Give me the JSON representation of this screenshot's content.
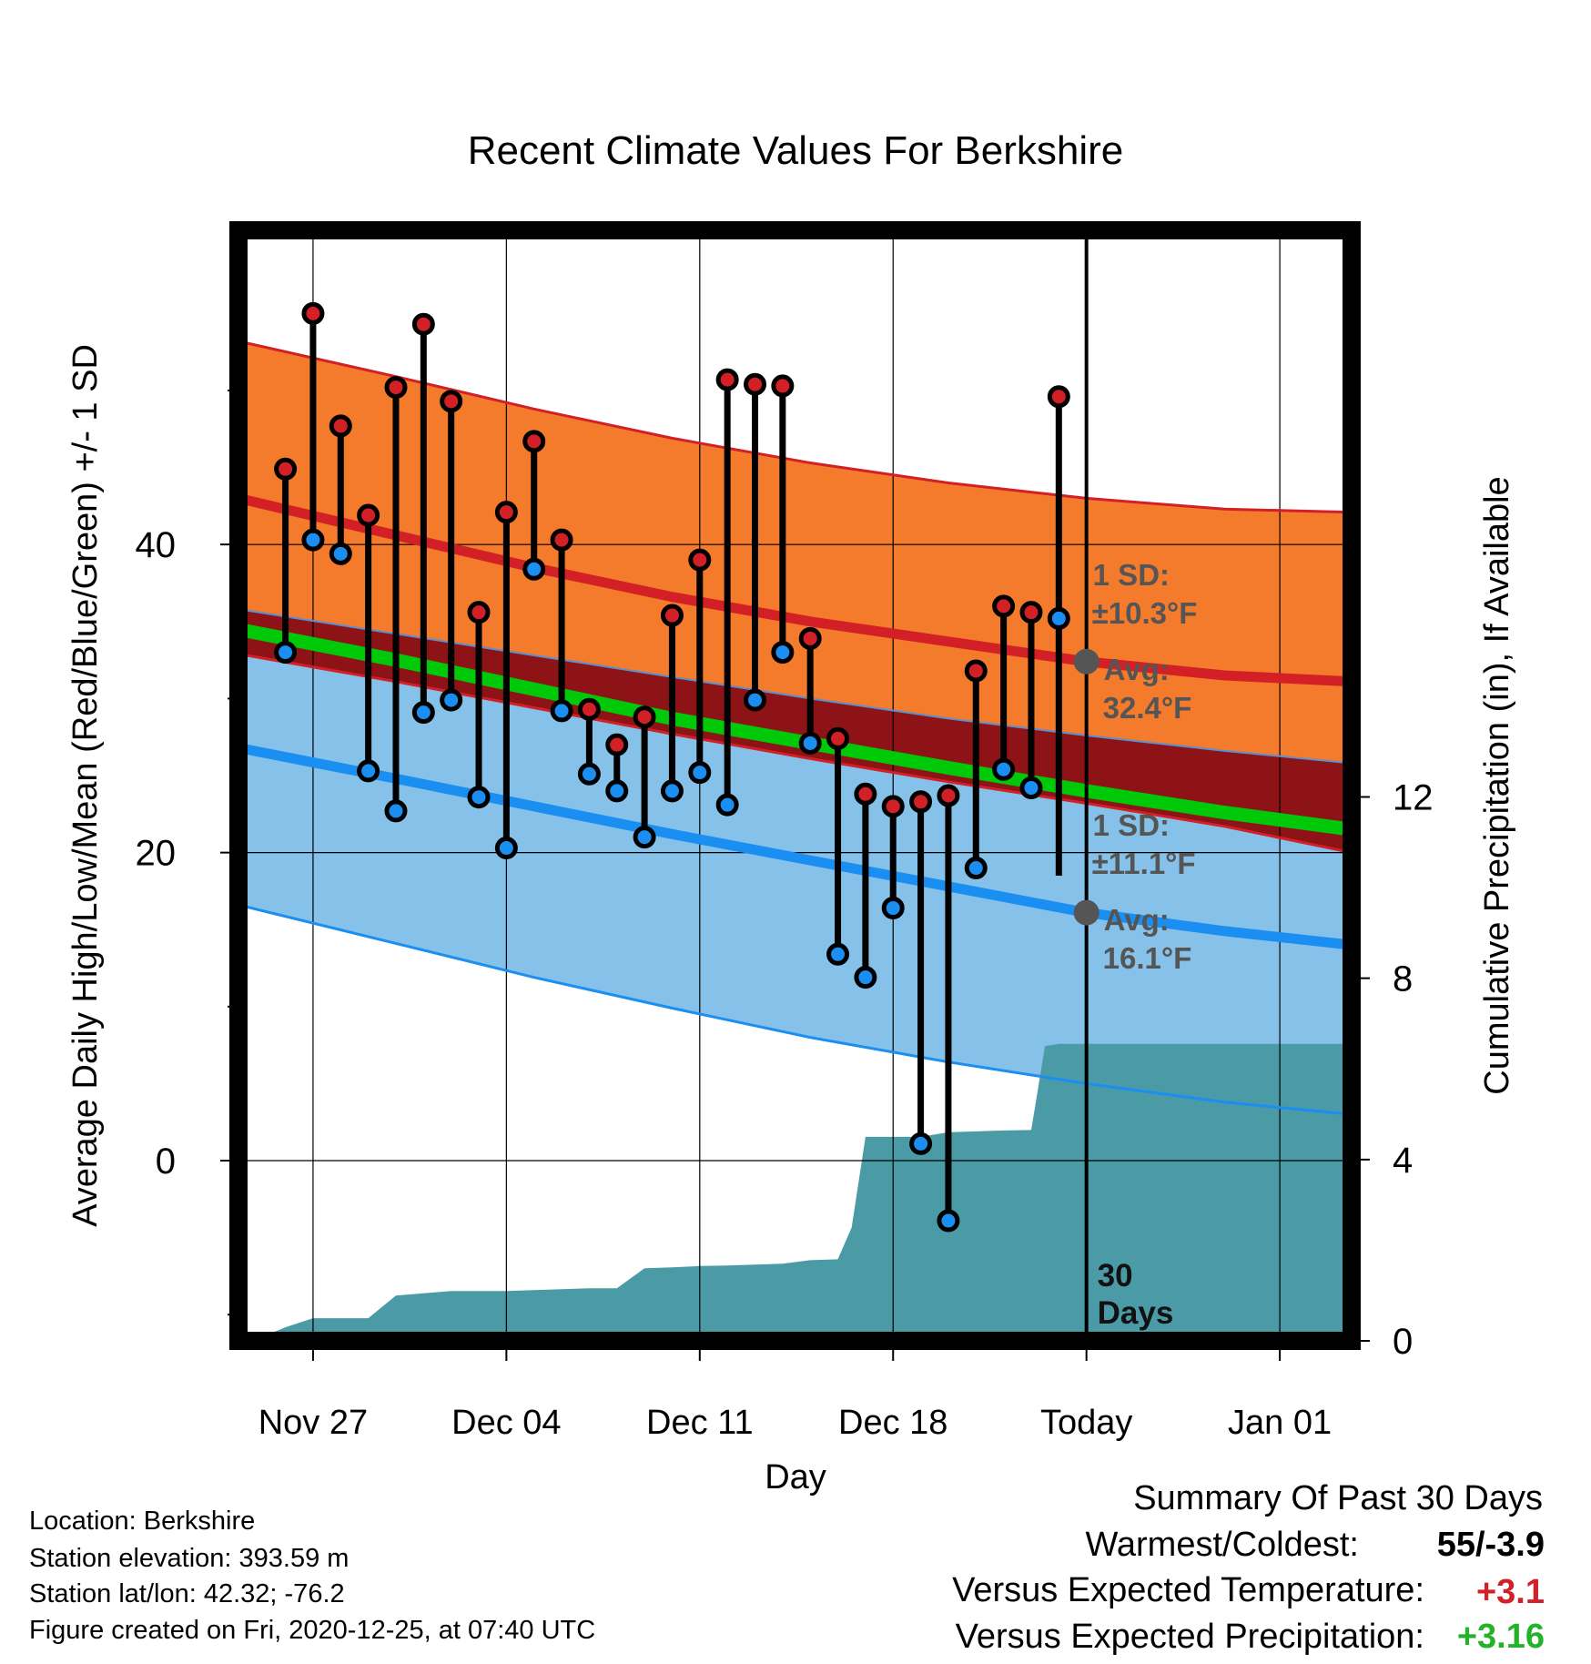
{
  "chart_data": {
    "type": "line",
    "title": "Recent Climate Values For Berkshire",
    "xlabel": "Day",
    "ylabel": "Average Daily High/Low/Mean (Red/Blue/Green) +/- 1 SD",
    "y2label": "Cumulative Precipitation (in), If Available",
    "x_tick_labels": [
      "Nov 27",
      "Dec 04",
      "Dec 11",
      "Dec 18",
      "Today",
      "Jan 01"
    ],
    "x_tick_days": [
      2,
      9,
      16,
      23,
      30,
      37
    ],
    "x_range_days": [
      -0.7,
      39.6
    ],
    "today_day": 30,
    "ylim": [
      -11.7,
      60.4
    ],
    "y_ticks": [
      0,
      20,
      40
    ],
    "y_minor_ticks": [
      -10,
      10,
      30,
      50
    ],
    "y2lim": [
      0,
      24.5
    ],
    "y2_ticks": [
      0,
      4,
      8,
      12
    ],
    "grid": true,
    "normals": {
      "day": [
        -0.7,
        5,
        10,
        15,
        20,
        25,
        30,
        35,
        39.6
      ],
      "high_plus_sd": [
        53.2,
        50.9,
        48.8,
        46.9,
        45.3,
        44.0,
        43.0,
        42.3,
        42.1
      ],
      "high_avg": [
        43.0,
        40.6,
        38.5,
        36.6,
        35.0,
        33.7,
        32.4,
        31.5,
        31.1
      ],
      "high_minus_sd": [
        35.8,
        34.2,
        32.8,
        31.4,
        30.0,
        28.7,
        27.6,
        26.6,
        25.8
      ],
      "mean_avg": [
        34.5,
        32.5,
        30.6,
        28.7,
        27.1,
        25.5,
        24.0,
        22.6,
        21.5
      ],
      "low_plus_sd": [
        32.9,
        31.1,
        29.4,
        27.7,
        26.1,
        24.6,
        23.2,
        21.7,
        20.0
      ],
      "low_avg": [
        26.8,
        24.8,
        23.0,
        21.2,
        19.5,
        17.8,
        16.1,
        14.9,
        14.0
      ],
      "low_minus_sd": [
        16.6,
        14.1,
        11.9,
        9.9,
        8.0,
        6.4,
        5.0,
        3.8,
        3.0
      ]
    },
    "series": [
      {
        "name": "High",
        "color": "#d32027",
        "days": [
          1,
          2,
          3,
          4,
          5,
          6,
          7,
          8,
          9,
          10,
          11,
          12,
          13,
          14,
          15,
          16,
          17,
          18,
          19,
          20,
          21,
          22,
          23,
          24,
          25,
          26,
          27,
          28,
          29
        ],
        "values": [
          44.9,
          55.0,
          47.7,
          41.9,
          50.2,
          54.3,
          49.3,
          35.6,
          42.1,
          46.7,
          40.3,
          29.3,
          27.0,
          28.8,
          35.4,
          39.0,
          50.7,
          50.4,
          50.3,
          33.9,
          27.4,
          23.8,
          23.0,
          23.3,
          23.7,
          31.8,
          36.0,
          35.6,
          36.7
        ],
        "extra_day29_high": 49.6
      },
      {
        "name": "Low",
        "color": "#1b8ef2",
        "days": [
          1,
          2,
          3,
          4,
          5,
          6,
          7,
          8,
          9,
          10,
          11,
          12,
          13,
          14,
          15,
          16,
          17,
          18,
          19,
          20,
          21,
          22,
          23,
          24,
          25,
          26,
          27,
          28,
          29
        ],
        "values": [
          33.0,
          40.3,
          39.4,
          25.3,
          22.7,
          29.1,
          29.9,
          23.6,
          20.3,
          38.4,
          29.2,
          25.1,
          24.0,
          21.0,
          24.0,
          25.2,
          23.1,
          29.9,
          33.0,
          27.1,
          13.4,
          11.9,
          16.4,
          1.1,
          -3.9,
          19.0,
          25.4,
          24.2,
          18.5
        ]
      }
    ],
    "station_points": [
      {
        "day": 29,
        "high": 49.6,
        "low": 35.2
      }
    ],
    "precipitation": {
      "color": "#4a9ba6",
      "days": [
        -0.7,
        0,
        1,
        2,
        3,
        4,
        5,
        6,
        7,
        8,
        9,
        10,
        11,
        12,
        13,
        14,
        15,
        16,
        17,
        18,
        19,
        20,
        21,
        21.5,
        22,
        23,
        24,
        25,
        26,
        27,
        28,
        28.5,
        29,
        30,
        39.6
      ],
      "values": [
        0.0,
        0.05,
        0.3,
        0.5,
        0.5,
        0.5,
        1.0,
        1.05,
        1.1,
        1.1,
        1.1,
        1.12,
        1.14,
        1.16,
        1.16,
        1.6,
        1.62,
        1.65,
        1.66,
        1.68,
        1.7,
        1.78,
        1.8,
        2.5,
        4.5,
        4.5,
        4.5,
        4.6,
        4.62,
        4.64,
        4.65,
        6.5,
        6.55,
        6.55,
        6.55
      ]
    },
    "annotations": {
      "high_sd_label": "1 SD:",
      "high_sd_value": "±10.3°F",
      "high_avg_label": "Avg:",
      "high_avg_value": "32.4°F",
      "high_avg_point": 32.4,
      "low_sd_label": "1 SD:",
      "low_sd_value": "±11.1°F",
      "low_avg_label": "Avg:",
      "low_avg_value": "16.1°F",
      "low_avg_point": 16.1,
      "days_line1": "30",
      "days_line2": "Days"
    },
    "colors": {
      "high_band": "#f47a2c",
      "high_line": "#d32027",
      "high_lower_band": "#8e1316",
      "mean_line": "#00c90a",
      "low_band": "#85c1e8",
      "low_line": "#1b8ef2",
      "annotation": "#555555",
      "frame": "#000000"
    }
  },
  "footer": {
    "location": "Location: Berkshire",
    "elevation": "Station elevation: 393.59 m",
    "latlon": "Station lat/lon: 42.32; -76.2",
    "created": "Figure created on Fri, 2020-12-25, at 07:40 UTC"
  },
  "summary": {
    "title": "Summary Of Past 30 Days",
    "warm_cold_label": "Warmest/Coldest:",
    "warm_cold_value": "55/-3.9",
    "temp_label": "Versus Expected Temperature:",
    "temp_value": "+3.1",
    "temp_color": "#d32027",
    "precip_label": "Versus Expected Precipitation:",
    "precip_value": "+3.16",
    "precip_color": "#22b32a"
  }
}
